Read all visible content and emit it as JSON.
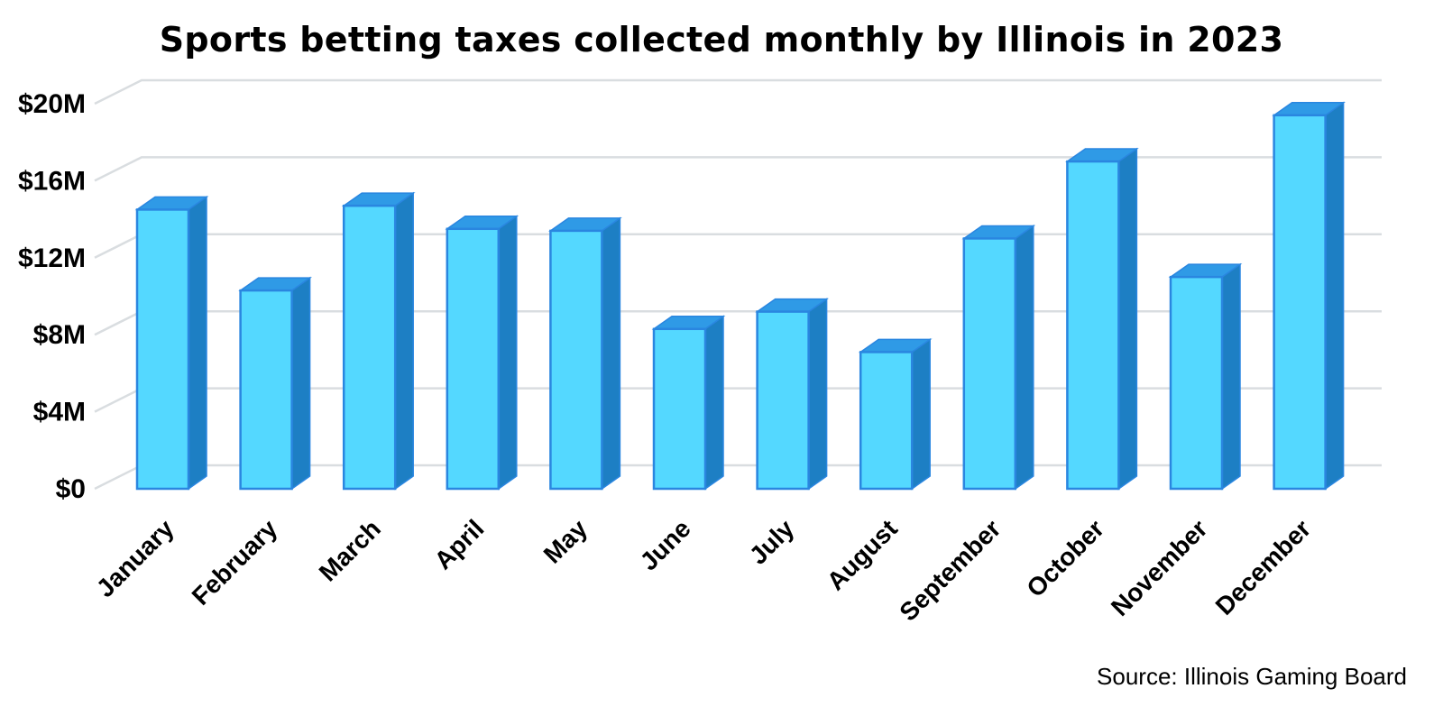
{
  "chart_data": {
    "type": "bar",
    "title": "Sports betting taxes collected monthly by Illinois in 2023",
    "xlabel": "",
    "ylabel": "",
    "categories": [
      "January",
      "February",
      "March",
      "April",
      "May",
      "June",
      "July",
      "August",
      "September",
      "October",
      "November",
      "December"
    ],
    "series": [
      {
        "values": [
          14.5,
          10.3,
          14.7,
          13.5,
          13.4,
          8.3,
          9.2,
          7.1,
          13.0,
          17.0,
          11.0,
          19.4
        ]
      }
    ],
    "ylim": [
      0,
      20
    ],
    "yticks": [
      {
        "value": 0,
        "label": "$0"
      },
      {
        "value": 4,
        "label": "$4M"
      },
      {
        "value": 8,
        "label": "$8M"
      },
      {
        "value": 12,
        "label": "$12M"
      },
      {
        "value": 16,
        "label": "$16M"
      },
      {
        "value": 20,
        "label": "$20M"
      }
    ],
    "grid": true,
    "legend": "none",
    "colors": {
      "bar_front": "#54d8ff",
      "bar_side": "#1d7fc4",
      "bar_top": "#2f9ae6",
      "bar_outline": "#2a86e0",
      "grid": "#d9dde0"
    }
  },
  "footer": {
    "source": "Source: Illinois Gaming Board"
  }
}
